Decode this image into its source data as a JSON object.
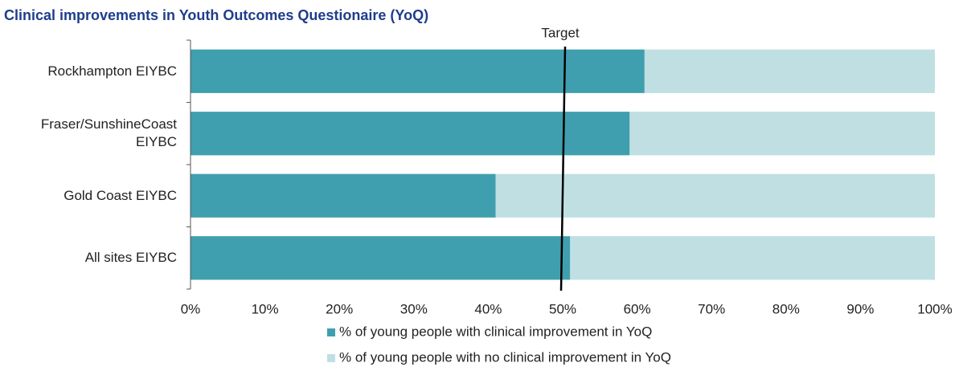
{
  "chart_data": {
    "type": "stacked_barh",
    "title": "Clinical improvements in Youth Outcomes Questionaire (YoQ)",
    "categories": [
      "Rockhampton EIYBC",
      "Fraser/SunshineCoast EIYBC",
      "Gold Coast EIYBC",
      "All sites EIYBC"
    ],
    "series": [
      {
        "name": "% of young people with clinical improvement in YoQ",
        "color": "#409fae",
        "values": [
          61,
          59,
          41,
          51
        ]
      },
      {
        "name": "% of young people with no clinical improvement in YoQ",
        "color": "#bfdfe3",
        "values": [
          39,
          41,
          59,
          49
        ]
      }
    ],
    "xlim": [
      0,
      100
    ],
    "xticks": [
      {
        "value": 0,
        "label": "0%"
      },
      {
        "value": 10,
        "label": "10%"
      },
      {
        "value": 20,
        "label": "20%"
      },
      {
        "value": 30,
        "label": "30%"
      },
      {
        "value": 40,
        "label": "40%"
      },
      {
        "value": 50,
        "label": "50%"
      },
      {
        "value": 60,
        "label": "60%"
      },
      {
        "value": 70,
        "label": "70%"
      },
      {
        "value": 80,
        "label": "80%"
      },
      {
        "value": 90,
        "label": "90%"
      },
      {
        "value": 100,
        "label": "100%"
      }
    ],
    "target": 50,
    "target_label": "Target",
    "legend": "bottom"
  }
}
